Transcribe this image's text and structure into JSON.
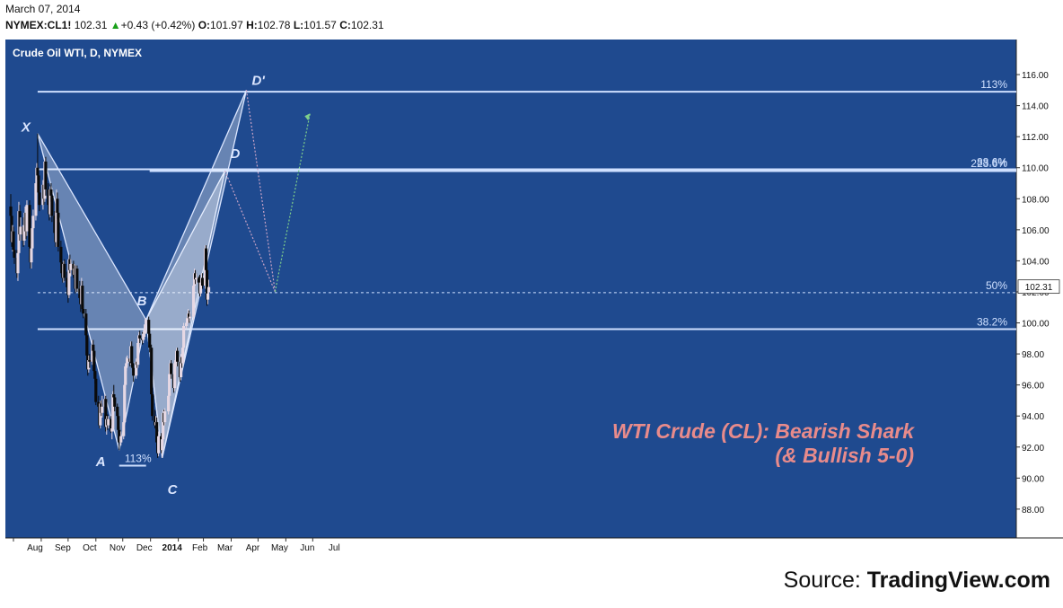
{
  "header": {
    "date": "March 07, 2014",
    "symbol": "NYMEX:CL1!",
    "last": "102.31",
    "change": "+0.43 (+0.42%)",
    "open_label": "O:",
    "open": "101.97",
    "high_label": "H:",
    "high": "102.78",
    "low_label": "L:",
    "low": "101.57",
    "close_label": "C:",
    "close": "102.31"
  },
  "colors": {
    "background": "#1f4a8f",
    "up": "#e6d8e4",
    "down": "#0a0a0a",
    "pattern_fill": "#ffffff",
    "accent_title": "#e88b8b"
  },
  "chart_data": {
    "type": "candlestick",
    "title": "Crude Oil WTI, D, NYMEX",
    "annotation_title_line1": "WTI Crude (CL): Bearish Shark",
    "annotation_title_line2": "(& Bullish 5-0)",
    "price_label": "102.31",
    "ylim": [
      86.2,
      116.6
    ],
    "y_ticks": [
      "88.00",
      "90.00",
      "92.00",
      "94.00",
      "96.00",
      "98.00",
      "100.00",
      "102.00",
      "104.00",
      "106.00",
      "108.00",
      "110.00",
      "112.00",
      "114.00",
      "116.00"
    ],
    "x_ticks": [
      {
        "label": "Aug",
        "date": "2013-08-01"
      },
      {
        "label": "Sep",
        "date": "2013-09-01"
      },
      {
        "label": "Oct",
        "date": "2013-10-01"
      },
      {
        "label": "Nov",
        "date": "2013-11-01"
      },
      {
        "label": "Dec",
        "date": "2013-12-01"
      },
      {
        "label": "2014",
        "date": "2014-01-01"
      },
      {
        "label": "Feb",
        "date": "2014-02-01"
      },
      {
        "label": "Mar",
        "date": "2014-03-01"
      },
      {
        "label": "Apr",
        "date": "2014-04-01"
      },
      {
        "label": "May",
        "date": "2014-05-01"
      },
      {
        "label": "Jun",
        "date": "2014-06-01"
      },
      {
        "label": "Jul",
        "date": "2014-07-01"
      }
    ],
    "pattern_points": [
      {
        "label": "X",
        "date": "2013-08-28",
        "price": 112.2
      },
      {
        "label": "A",
        "date": "2013-11-27",
        "price": 91.8
      },
      {
        "label": "B",
        "date": "2013-12-27",
        "price": 100.2
      },
      {
        "label": "C",
        "date": "2014-01-14",
        "price": 91.3
      },
      {
        "label": "D",
        "date": "2014-03-25",
        "price": 109.8
      },
      {
        "label": "D'",
        "date": "2014-04-18",
        "price": 115.0
      }
    ],
    "levels": [
      {
        "label": "113%",
        "price": 114.9
      },
      {
        "label": "88.6%",
        "price": 109.9
      },
      {
        "label": "223.6%",
        "price": 109.8
      },
      {
        "label": "50%",
        "price": 101.95
      },
      {
        "label": "38.2%",
        "price": 99.6
      },
      {
        "label": "113%",
        "price": 90.8
      }
    ],
    "projections": [
      {
        "from": {
          "date": "2014-03-25",
          "price": 109.8
        },
        "to": {
          "date": "2014-05-20",
          "price": 102.0
        }
      },
      {
        "from": {
          "date": "2014-04-18",
          "price": 115.0
        },
        "to": {
          "date": "2014-05-20",
          "price": 102.0
        }
      },
      {
        "from": {
          "date": "2014-05-20",
          "price": 102.0
        },
        "to": {
          "date": "2014-06-28",
          "price": 113.5
        }
      }
    ],
    "candles": [
      [
        "2013-07-29",
        107.5,
        108.3,
        106.5,
        106.9
      ],
      [
        "2013-07-30",
        106.9,
        107.2,
        104.9,
        105.2
      ],
      [
        "2013-07-31",
        105.2,
        106.3,
        104.6,
        105.9
      ],
      [
        "2013-08-01",
        105.9,
        106.2,
        104.4,
        104.7
      ],
      [
        "2013-08-02",
        104.7,
        105.5,
        103.8,
        104.2
      ],
      [
        "2013-08-05",
        104.2,
        104.7,
        102.9,
        103.2
      ],
      [
        "2013-08-06",
        103.2,
        104.8,
        102.7,
        104.5
      ],
      [
        "2013-08-07",
        104.5,
        107.8,
        104.2,
        107.2
      ],
      [
        "2013-08-08",
        107.2,
        107.6,
        105.3,
        105.7
      ],
      [
        "2013-08-09",
        105.7,
        106.8,
        105.3,
        106.2
      ],
      [
        "2013-08-12",
        106.2,
        106.8,
        104.9,
        105.3
      ],
      [
        "2013-08-13",
        105.3,
        106.6,
        105.0,
        106.3
      ],
      [
        "2013-08-14",
        106.3,
        107.5,
        106.0,
        107.1
      ],
      [
        "2013-08-15",
        107.1,
        107.3,
        105.4,
        105.9
      ],
      [
        "2013-08-16",
        105.9,
        107.9,
        105.6,
        107.6
      ],
      [
        "2013-08-19",
        107.6,
        107.9,
        104.6,
        104.9
      ],
      [
        "2013-08-20",
        104.9,
        105.3,
        103.5,
        103.9
      ],
      [
        "2013-08-21",
        103.9,
        105.1,
        103.5,
        104.8
      ],
      [
        "2013-08-22",
        104.8,
        106.4,
        104.4,
        106.1
      ],
      [
        "2013-08-23",
        106.1,
        107.3,
        105.8,
        106.9
      ],
      [
        "2013-08-26",
        106.9,
        109.3,
        106.6,
        109.0
      ],
      [
        "2013-08-27",
        109.0,
        110.3,
        108.6,
        110.0
      ],
      [
        "2013-08-28",
        110.0,
        112.2,
        109.2,
        109.5
      ],
      [
        "2013-08-29",
        109.5,
        109.9,
        108.0,
        108.4
      ],
      [
        "2013-08-30",
        108.4,
        108.8,
        107.2,
        107.6
      ],
      [
        "2013-09-03",
        107.6,
        109.2,
        107.3,
        108.9
      ],
      [
        "2013-09-04",
        108.9,
        109.3,
        107.6,
        108.0
      ],
      [
        "2013-09-05",
        108.0,
        110.6,
        107.8,
        110.4
      ],
      [
        "2013-09-06",
        110.4,
        110.7,
        108.2,
        108.6
      ],
      [
        "2013-09-09",
        108.6,
        109.0,
        107.3,
        107.6
      ],
      [
        "2013-09-10",
        107.6,
        108.2,
        106.6,
        107.0
      ],
      [
        "2013-09-11",
        107.0,
        108.8,
        106.8,
        108.6
      ],
      [
        "2013-09-12",
        108.6,
        109.0,
        107.8,
        108.2
      ],
      [
        "2013-09-13",
        108.2,
        108.4,
        106.5,
        106.9
      ],
      [
        "2013-09-16",
        106.9,
        107.2,
        105.4,
        105.8
      ],
      [
        "2013-09-17",
        105.8,
        106.1,
        104.9,
        105.2
      ],
      [
        "2013-09-18",
        105.2,
        108.6,
        104.9,
        108.0
      ],
      [
        "2013-09-19",
        108.0,
        108.4,
        106.7,
        107.1
      ],
      [
        "2013-09-20",
        107.1,
        107.4,
        104.6,
        104.9
      ],
      [
        "2013-09-23",
        104.9,
        105.3,
        103.6,
        103.9
      ],
      [
        "2013-09-24",
        103.9,
        104.3,
        102.9,
        103.2
      ],
      [
        "2013-09-25",
        103.2,
        103.5,
        102.6,
        102.9
      ],
      [
        "2013-09-26",
        102.9,
        104.0,
        102.6,
        103.8
      ],
      [
        "2013-09-27",
        103.8,
        104.1,
        102.7,
        102.9
      ],
      [
        "2013-09-30",
        102.9,
        103.3,
        101.8,
        102.3
      ],
      [
        "2013-10-01",
        102.3,
        102.6,
        101.3,
        101.8
      ],
      [
        "2013-10-02",
        101.8,
        104.3,
        101.6,
        104.1
      ],
      [
        "2013-10-03",
        104.1,
        104.4,
        103.2,
        103.4
      ],
      [
        "2013-10-04",
        103.4,
        104.1,
        103.0,
        103.8
      ],
      [
        "2013-10-07",
        103.8,
        104.0,
        102.9,
        103.1
      ],
      [
        "2013-10-08",
        103.1,
        103.8,
        102.8,
        103.5
      ],
      [
        "2013-10-09",
        103.5,
        103.7,
        101.9,
        102.2
      ],
      [
        "2013-10-10",
        102.2,
        103.7,
        102.0,
        103.5
      ],
      [
        "2013-10-11",
        103.5,
        103.7,
        102.0,
        102.2
      ],
      [
        "2013-10-14",
        102.2,
        102.7,
        101.3,
        101.6
      ],
      [
        "2013-10-15",
        101.6,
        101.9,
        100.7,
        101.2
      ],
      [
        "2013-10-16",
        101.2,
        102.9,
        100.9,
        102.4
      ],
      [
        "2013-10-17",
        102.4,
        102.7,
        100.6,
        100.9
      ],
      [
        "2013-10-18",
        100.9,
        101.2,
        100.3,
        100.6
      ],
      [
        "2013-10-21",
        100.6,
        100.9,
        98.9,
        99.2
      ],
      [
        "2013-10-22",
        99.2,
        99.5,
        97.6,
        97.9
      ],
      [
        "2013-10-23",
        97.9,
        98.2,
        96.6,
        97.0
      ],
      [
        "2013-10-24",
        97.0,
        97.9,
        96.8,
        97.6
      ],
      [
        "2013-10-25",
        97.6,
        98.0,
        97.1,
        97.5
      ],
      [
        "2013-10-28",
        97.5,
        98.9,
        97.3,
        98.6
      ],
      [
        "2013-10-29",
        98.6,
        98.9,
        97.9,
        98.2
      ],
      [
        "2013-10-30",
        98.2,
        98.4,
        96.6,
        96.9
      ],
      [
        "2013-10-31",
        96.9,
        97.3,
        96.1,
        96.4
      ],
      [
        "2013-11-01",
        96.4,
        96.8,
        94.7,
        94.9
      ],
      [
        "2013-11-04",
        94.9,
        95.3,
        94.2,
        94.6
      ],
      [
        "2013-11-05",
        94.6,
        94.9,
        93.2,
        93.4
      ],
      [
        "2013-11-06",
        93.4,
        95.0,
        93.2,
        94.8
      ],
      [
        "2013-11-07",
        94.8,
        95.0,
        94.0,
        94.2
      ],
      [
        "2013-11-08",
        94.2,
        95.3,
        93.9,
        94.6
      ],
      [
        "2013-11-11",
        94.6,
        95.4,
        94.1,
        95.1
      ],
      [
        "2013-11-12",
        95.1,
        95.3,
        93.0,
        93.3
      ],
      [
        "2013-11-13",
        93.3,
        94.0,
        92.8,
        93.8
      ],
      [
        "2013-11-14",
        93.8,
        94.1,
        93.1,
        93.4
      ],
      [
        "2013-11-15",
        93.4,
        94.0,
        93.2,
        93.8
      ],
      [
        "2013-11-18",
        93.8,
        94.0,
        92.9,
        93.0
      ],
      [
        "2013-11-19",
        93.0,
        93.4,
        92.5,
        93.2
      ],
      [
        "2013-11-20",
        93.2,
        95.6,
        93.0,
        95.4
      ],
      [
        "2013-11-21",
        95.4,
        96.0,
        94.9,
        95.2
      ],
      [
        "2013-11-22",
        95.2,
        95.4,
        94.3,
        94.6
      ],
      [
        "2013-11-25",
        94.6,
        94.8,
        93.8,
        94.0
      ],
      [
        "2013-11-26",
        94.0,
        94.2,
        92.9,
        93.1
      ],
      [
        "2013-11-27",
        93.1,
        93.3,
        91.8,
        92.3
      ],
      [
        "2013-11-29",
        92.3,
        93.0,
        92.1,
        92.7
      ],
      [
        "2013-12-02",
        92.7,
        93.8,
        92.5,
        93.6
      ],
      [
        "2013-12-03",
        93.6,
        96.2,
        93.4,
        96.0
      ],
      [
        "2013-12-04",
        96.0,
        97.4,
        95.8,
        97.2
      ],
      [
        "2013-12-05",
        97.2,
        97.8,
        96.9,
        97.4
      ],
      [
        "2013-12-06",
        97.4,
        97.9,
        97.1,
        97.7
      ],
      [
        "2013-12-09",
        97.7,
        98.2,
        97.2,
        97.5
      ],
      [
        "2013-12-10",
        97.5,
        98.8,
        97.3,
        98.5
      ],
      [
        "2013-12-11",
        98.5,
        98.8,
        97.2,
        97.4
      ],
      [
        "2013-12-12",
        97.4,
        97.6,
        96.8,
        97.1
      ],
      [
        "2013-12-13",
        97.1,
        97.4,
        96.2,
        96.6
      ],
      [
        "2013-12-16",
        96.6,
        97.7,
        96.4,
        97.5
      ],
      [
        "2013-12-17",
        97.5,
        97.9,
        97.1,
        97.3
      ],
      [
        "2013-12-18",
        97.3,
        98.9,
        97.1,
        98.7
      ],
      [
        "2013-12-19",
        98.7,
        99.4,
        98.4,
        99.2
      ],
      [
        "2013-12-20",
        99.2,
        99.5,
        98.7,
        99.0
      ],
      [
        "2013-12-23",
        99.0,
        99.4,
        98.6,
        98.9
      ],
      [
        "2013-12-24",
        98.9,
        99.5,
        98.7,
        99.3
      ],
      [
        "2013-12-26",
        99.3,
        100.3,
        99.1,
        99.9
      ],
      [
        "2013-12-27",
        99.9,
        100.3,
        99.4,
        100.2
      ],
      [
        "2013-12-30",
        100.2,
        100.4,
        98.9,
        99.3
      ],
      [
        "2013-12-31",
        99.3,
        99.5,
        98.1,
        98.4
      ],
      [
        "2014-01-02",
        98.4,
        98.6,
        95.0,
        95.4
      ],
      [
        "2014-01-03",
        95.4,
        95.6,
        93.7,
        94.0
      ],
      [
        "2014-01-06",
        94.0,
        94.4,
        93.2,
        93.4
      ],
      [
        "2014-01-07",
        93.4,
        94.0,
        92.7,
        93.6
      ],
      [
        "2014-01-08",
        93.6,
        93.9,
        91.9,
        92.3
      ],
      [
        "2014-01-09",
        92.3,
        92.6,
        91.3,
        91.6
      ],
      [
        "2014-01-10",
        91.6,
        93.0,
        91.4,
        92.7
      ],
      [
        "2014-01-13",
        92.7,
        92.9,
        91.6,
        91.8
      ],
      [
        "2014-01-14",
        91.8,
        92.7,
        91.3,
        92.5
      ],
      [
        "2014-01-15",
        92.5,
        94.4,
        92.3,
        94.2
      ],
      [
        "2014-01-16",
        94.2,
        94.4,
        93.4,
        93.6
      ],
      [
        "2014-01-17",
        93.6,
        94.5,
        93.4,
        94.3
      ],
      [
        "2014-01-21",
        94.3,
        95.5,
        94.1,
        95.3
      ],
      [
        "2014-01-22",
        95.3,
        96.9,
        95.0,
        96.7
      ],
      [
        "2014-01-23",
        96.7,
        97.6,
        96.4,
        97.4
      ],
      [
        "2014-01-24",
        97.4,
        97.6,
        96.4,
        96.7
      ],
      [
        "2014-01-27",
        96.7,
        96.9,
        95.5,
        95.8
      ],
      [
        "2014-01-28",
        95.8,
        97.6,
        95.6,
        97.4
      ],
      [
        "2014-01-29",
        97.4,
        97.9,
        97.1,
        97.5
      ],
      [
        "2014-01-30",
        97.5,
        98.4,
        97.2,
        98.2
      ],
      [
        "2014-01-31",
        98.2,
        98.4,
        97.2,
        97.5
      ],
      [
        "2014-02-03",
        97.5,
        97.7,
        96.2,
        96.5
      ],
      [
        "2014-02-04",
        96.5,
        98.0,
        96.3,
        97.8
      ],
      [
        "2014-02-05",
        97.8,
        98.0,
        97.1,
        97.4
      ],
      [
        "2014-02-06",
        97.4,
        98.6,
        97.2,
        98.4
      ],
      [
        "2014-02-07",
        98.4,
        100.0,
        98.2,
        99.8
      ],
      [
        "2014-02-10",
        99.8,
        100.3,
        99.6,
        100.0
      ],
      [
        "2014-02-11",
        100.0,
        100.5,
        99.8,
        100.3
      ],
      [
        "2014-02-12",
        100.3,
        100.9,
        100.1,
        100.6
      ],
      [
        "2014-02-13",
        100.6,
        100.8,
        100.0,
        100.3
      ],
      [
        "2014-02-14",
        100.3,
        100.7,
        100.1,
        100.4
      ],
      [
        "2014-02-18",
        100.4,
        102.8,
        100.2,
        102.4
      ],
      [
        "2014-02-19",
        102.4,
        103.5,
        102.2,
        103.2
      ],
      [
        "2014-02-20",
        103.2,
        103.4,
        102.5,
        102.8
      ],
      [
        "2014-02-21",
        102.8,
        103.2,
        102.5,
        102.9
      ],
      [
        "2014-02-24",
        102.9,
        103.0,
        102.3,
        102.6
      ],
      [
        "2014-02-25",
        102.6,
        103.1,
        101.7,
        101.9
      ],
      [
        "2014-02-26",
        101.9,
        102.8,
        101.7,
        102.6
      ],
      [
        "2014-02-27",
        102.6,
        103.2,
        102.4,
        102.9
      ],
      [
        "2014-02-28",
        102.9,
        103.2,
        102.2,
        102.4
      ],
      [
        "2014-03-03",
        102.4,
        105.0,
        102.2,
        104.8
      ],
      [
        "2014-03-04",
        104.8,
        105.0,
        103.2,
        103.4
      ],
      [
        "2014-03-05",
        103.4,
        103.6,
        101.1,
        101.5
      ],
      [
        "2014-03-06",
        101.5,
        102.2,
        101.2,
        101.9
      ],
      [
        "2014-03-07",
        101.97,
        102.78,
        101.57,
        102.31
      ]
    ]
  },
  "source": {
    "prefix": "Source: ",
    "name": "TradingView.com"
  }
}
